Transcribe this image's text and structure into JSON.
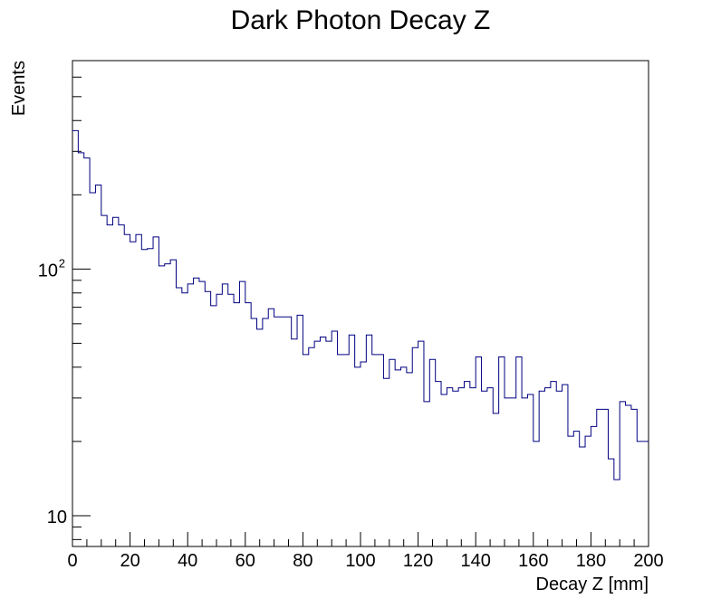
{
  "chart_data": {
    "type": "histogram",
    "title": "Dark Photon Decay Z",
    "xlabel": "Decay Z [mm]",
    "ylabel": "Events",
    "y_scale": "log",
    "xlim": [
      0,
      200
    ],
    "ylim": [
      7.5,
      700
    ],
    "grid": false,
    "line_color": "#000080",
    "bin_width": 2,
    "x_ticks": [
      0,
      20,
      40,
      60,
      80,
      100,
      120,
      140,
      160,
      180,
      200
    ],
    "y_tick_labels": [
      {
        "value": 10,
        "base": "10",
        "exp": ""
      },
      {
        "value": 100,
        "base": "10",
        "exp": "2"
      }
    ],
    "values": [
      364,
      296,
      282,
      204,
      219,
      165,
      151,
      162,
      151,
      138,
      129,
      138,
      120,
      121,
      135,
      103,
      105,
      109,
      84,
      80,
      87,
      92,
      89,
      81,
      71,
      79,
      87,
      79,
      73,
      89,
      73,
      63,
      57,
      63,
      69,
      64,
      64,
      64,
      52,
      65,
      45,
      48,
      51,
      53,
      51,
      56,
      45,
      45,
      54,
      40,
      42,
      54,
      45,
      45,
      36,
      43,
      39,
      40,
      38,
      48,
      51,
      29,
      43,
      35,
      31,
      33,
      32,
      33,
      35,
      33,
      44,
      32,
      33,
      26,
      44,
      30,
      30,
      44,
      30,
      31,
      20,
      32,
      33,
      35,
      32,
      34,
      21,
      22,
      19,
      21,
      23,
      27,
      27,
      17,
      14,
      29,
      28,
      27,
      20,
      20
    ]
  }
}
